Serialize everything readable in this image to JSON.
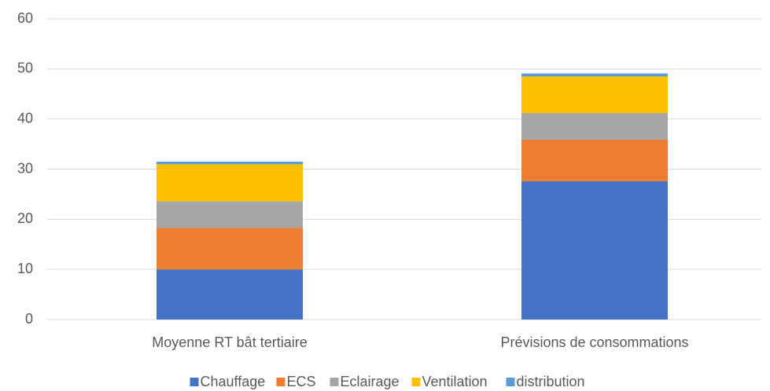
{
  "chart_data": {
    "type": "stacked_bar",
    "categories": [
      "Moyenne RT bât tertiaire",
      "Prévisions de consommations"
    ],
    "series": [
      {
        "name": "Chauffage",
        "color": "#4472c4",
        "values": [
          10,
          27.6
        ]
      },
      {
        "name": "ECS",
        "color": "#ed7d31",
        "values": [
          8.3,
          8.3
        ]
      },
      {
        "name": "Eclairage",
        "color": "#a5a5a5",
        "values": [
          5.3,
          5.3
        ]
      },
      {
        "name": "Ventilation",
        "color": "#ffc000",
        "values": [
          7.4,
          7.3
        ]
      },
      {
        "name": "distribution",
        "color": "#5b9bd5",
        "values": [
          0.5,
          0.6
        ]
      }
    ],
    "ylim": [
      0,
      60
    ],
    "yticks": [
      0,
      10,
      20,
      30,
      40,
      50,
      60
    ],
    "grid": true,
    "legend": "bottom"
  }
}
